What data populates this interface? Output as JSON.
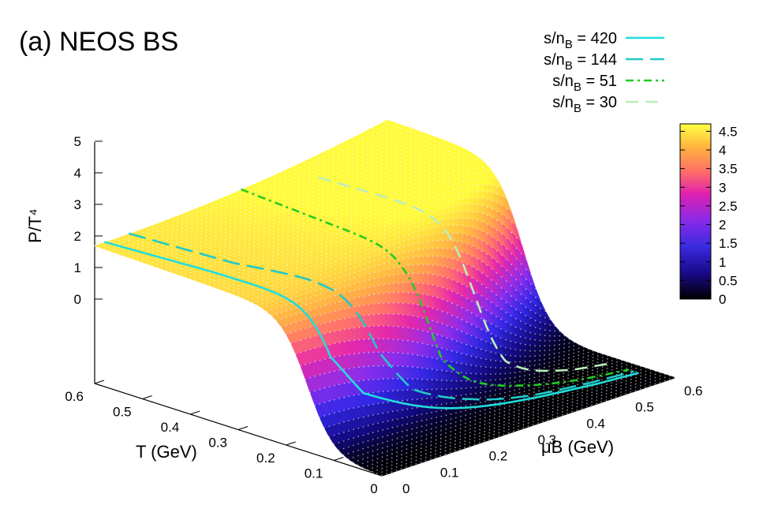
{
  "chart_data": {
    "type": "surface3d",
    "title": "(a) NEOS BS",
    "zlabel": "P/T⁴",
    "xlabel": "T (GeV)",
    "ylabel": "μB (GeV)",
    "x_ticks": [
      "0",
      "0.1",
      "0.2",
      "0.3",
      "0.4",
      "0.5",
      "0.6"
    ],
    "y_ticks": [
      "0",
      "0.1",
      "0.2",
      "0.3",
      "0.4",
      "0.5",
      "0.6"
    ],
    "z_ticks": [
      "0",
      "1",
      "2",
      "3",
      "4",
      "5"
    ],
    "xlim": [
      0,
      0.6
    ],
    "ylim": [
      0,
      0.6
    ],
    "zlim": [
      0,
      5
    ],
    "colorbar": {
      "min": 0,
      "max": 4.7,
      "ticks": [
        "0",
        "0.5",
        "1",
        "1.5",
        "2",
        "2.5",
        "3",
        "3.5",
        "4",
        "4.5"
      ],
      "palette": [
        "#000000",
        "#2a1cbf",
        "#7a2aff",
        "#e020b8",
        "#ff6a6a",
        "#ffb040",
        "#ffff00"
      ]
    },
    "series": [
      {
        "name": "s/nB = 420",
        "label_main": "s/n",
        "label_sub": "B",
        "label_rest": " = 420",
        "color": "#22dddd",
        "dash": "",
        "points": [
          [
            0.6,
            0.02
          ],
          [
            0.4,
            0.042
          ],
          [
            0.25,
            0.052
          ],
          [
            0.17,
            0.062
          ],
          [
            0.14,
            0.1
          ],
          [
            0.12,
            0.2
          ],
          [
            0.1,
            0.3
          ],
          [
            0.08,
            0.4
          ],
          [
            0.06,
            0.5
          ],
          [
            0.05,
            0.58
          ]
        ]
      },
      {
        "name": "s/nB = 144",
        "label_main": "s/n",
        "label_sub": "B",
        "label_rest": " = 144",
        "color": "#22c8c8",
        "dash": "22,9",
        "points": [
          [
            0.6,
            0.07
          ],
          [
            0.4,
            0.09
          ],
          [
            0.25,
            0.13
          ],
          [
            0.17,
            0.16
          ],
          [
            0.14,
            0.2
          ],
          [
            0.12,
            0.3
          ],
          [
            0.09,
            0.4
          ],
          [
            0.07,
            0.5
          ],
          [
            0.06,
            0.58
          ]
        ]
      },
      {
        "name": "s/nB = 51",
        "label_main": "s/n",
        "label_sub": "B",
        "label_rest": " = 51",
        "color": "#22cc22",
        "dash": "10,5,3,5",
        "points": [
          [
            0.6,
            0.3
          ],
          [
            0.4,
            0.29
          ],
          [
            0.25,
            0.285
          ],
          [
            0.17,
            0.29
          ],
          [
            0.15,
            0.33
          ],
          [
            0.13,
            0.4
          ],
          [
            0.09,
            0.5
          ],
          [
            0.07,
            0.58
          ]
        ]
      },
      {
        "name": "s/nB = 30",
        "label_main": "s/n",
        "label_sub": "B",
        "label_rest": " = 30",
        "color": "#bbeebb",
        "dash": "16,9",
        "points": [
          [
            0.54,
            0.4
          ],
          [
            0.4,
            0.41
          ],
          [
            0.25,
            0.42
          ],
          [
            0.18,
            0.43
          ],
          [
            0.16,
            0.46
          ],
          [
            0.13,
            0.52
          ],
          [
            0.11,
            0.58
          ]
        ]
      }
    ]
  }
}
